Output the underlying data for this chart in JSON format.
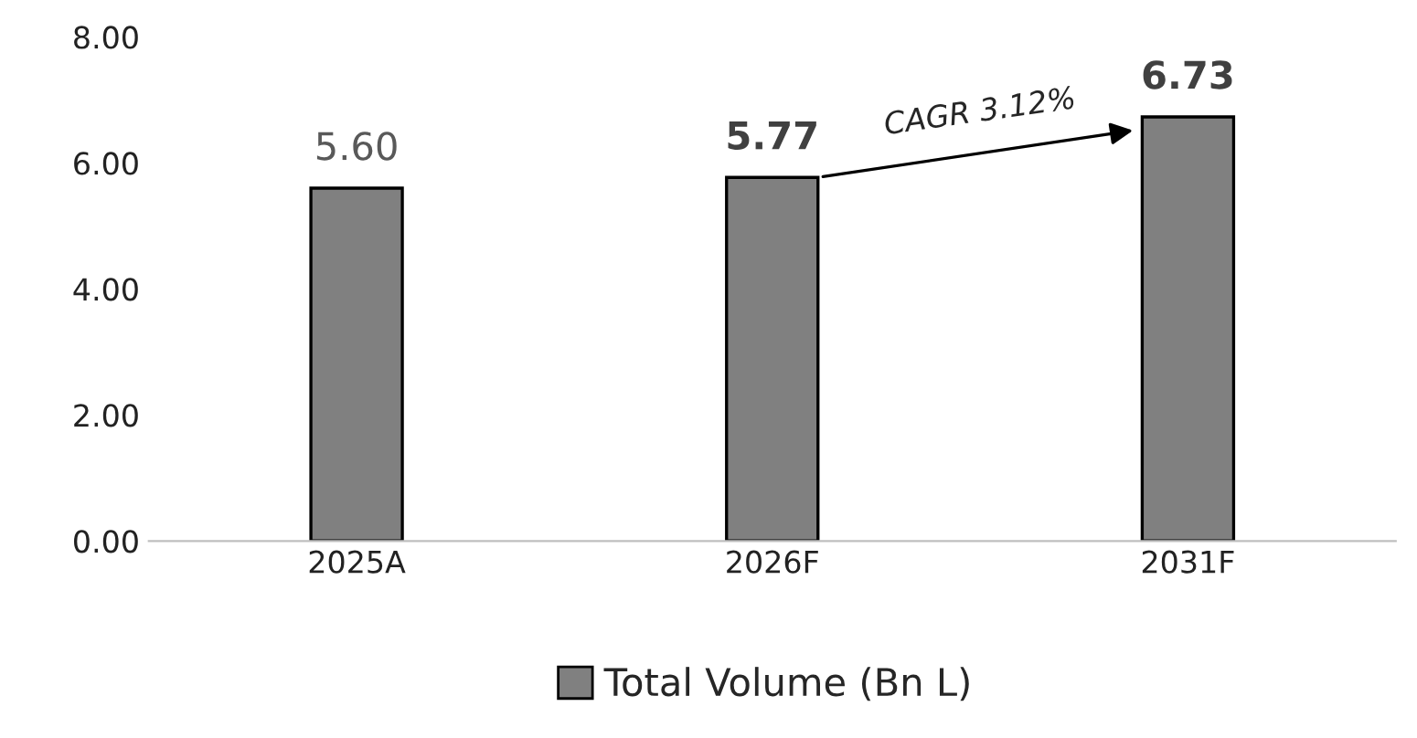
{
  "chart_data": {
    "type": "bar",
    "categories": [
      "2025A",
      "2026F",
      "2031F"
    ],
    "series": [
      {
        "name": "Total Volume (Bn L)",
        "color": "#808080",
        "values": [
          5.6,
          5.77,
          6.73
        ]
      }
    ],
    "value_labels": [
      "5.60",
      "5.77",
      "6.73"
    ],
    "ylim": [
      0,
      8
    ],
    "yticks": [
      {
        "value": 0,
        "label": "0.00"
      },
      {
        "value": 2,
        "label": "2.00"
      },
      {
        "value": 4,
        "label": "4.00"
      },
      {
        "value": 6,
        "label": "6.00"
      },
      {
        "value": 8,
        "label": "8.00"
      }
    ],
    "annotations": [
      "CAGR 3.12%"
    ],
    "grid": false,
    "legend": "bottom"
  }
}
